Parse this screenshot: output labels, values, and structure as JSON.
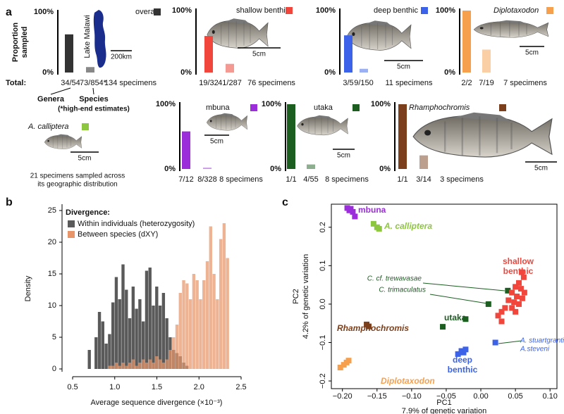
{
  "panels": [
    "a",
    "b",
    "c"
  ],
  "calliptera": {
    "title": "A. calliptera",
    "color": "#8dc63f",
    "scale": "5cm",
    "caption": [
      "21 specimens sampled across",
      "its geographic distribution"
    ]
  },
  "chart_data": [
    {
      "type": "bar",
      "title": "overall",
      "ylabel": [
        "Proportion",
        "sampled"
      ],
      "colors": [
        "#333333",
        "#888888"
      ],
      "categories": [
        "34/54",
        "73/854*"
      ],
      "values": [
        63,
        9
      ],
      "ylim": [
        0,
        100
      ],
      "yticks": [
        {
          "value": 0,
          "label": "0%"
        },
        {
          "value": 100,
          "label": "100%"
        }
      ],
      "note": "134 specimens",
      "total_label": "Total:",
      "group_labels": [
        "Genera",
        "Species"
      ],
      "footnote": "(*high-end estimates)",
      "map_label": "Lake Malawi",
      "map_scale": "200km"
    },
    {
      "type": "bar",
      "title": "shallow benthic",
      "colors": [
        "#f0463c",
        "#f59a92"
      ],
      "categories": [
        "19/32",
        "41/287"
      ],
      "values": [
        59,
        14
      ],
      "ylim": [
        0,
        100
      ],
      "yticks": [
        {
          "value": 0,
          "label": "0%"
        },
        {
          "value": 100,
          "label": "100%"
        }
      ],
      "note": "76 specimens",
      "scale": "5cm"
    },
    {
      "type": "bar",
      "title": "deep benthic",
      "colors": [
        "#3b62e8",
        "#9bb0f3"
      ],
      "categories": [
        "3/5",
        "9/150"
      ],
      "values": [
        60,
        6
      ],
      "ylim": [
        0,
        100
      ],
      "yticks": [
        {
          "value": 0,
          "label": "0%"
        },
        {
          "value": 100,
          "label": "100%"
        }
      ],
      "note": "11 specimens",
      "scale": "5cm"
    },
    {
      "type": "bar",
      "title": "Diplotaxodon",
      "title_italic": true,
      "colors": [
        "#f6a04d",
        "#fbcfa6"
      ],
      "categories": [
        "2/2",
        "7/19"
      ],
      "values": [
        100,
        37
      ],
      "ylim": [
        0,
        100
      ],
      "yticks": [
        {
          "value": 0,
          "label": "0%"
        },
        {
          "value": 100,
          "label": "100%"
        }
      ],
      "note": "7 specimens",
      "scale": "5cm"
    },
    {
      "type": "bar",
      "title": "mbuna",
      "colors": [
        "#9b2ddb",
        "#cd96ed"
      ],
      "categories": [
        "7/12",
        "8/328"
      ],
      "values": [
        58,
        2
      ],
      "ylim": [
        0,
        100
      ],
      "yticks": [
        {
          "value": 0,
          "label": "0%"
        },
        {
          "value": 100,
          "label": "100%"
        }
      ],
      "note": "8 specimens",
      "scale": "5cm"
    },
    {
      "type": "bar",
      "title": "utaka",
      "colors": [
        "#1b5e20",
        "#8daf8f"
      ],
      "categories": [
        "1/1",
        "4/55"
      ],
      "values": [
        100,
        7
      ],
      "ylim": [
        0,
        100
      ],
      "yticks": [
        {
          "value": 0,
          "label": "0%"
        },
        {
          "value": 100,
          "label": "100%"
        }
      ],
      "note": "8 specimens",
      "scale": "5cm"
    },
    {
      "type": "bar",
      "title": "Rhamphochromis",
      "title_italic": true,
      "colors": [
        "#7b3f1c",
        "#bd9f8d"
      ],
      "categories": [
        "1/1",
        "3/14"
      ],
      "values": [
        100,
        21
      ],
      "ylim": [
        0,
        100
      ],
      "yticks": [
        {
          "value": 0,
          "label": "0%"
        },
        {
          "value": 100,
          "label": "100%"
        }
      ],
      "note": "3 specimens",
      "scale": "5cm"
    },
    {
      "type": "histogram",
      "legend_title": "Divergence:",
      "xlabel": "Average sequence divergence (×10⁻³)",
      "ylabel": "Density",
      "bins": [
        0.64,
        0.68,
        0.72,
        0.76,
        0.8,
        0.84,
        0.88,
        0.92,
        0.96,
        1.0,
        1.04,
        1.08,
        1.12,
        1.16,
        1.2,
        1.24,
        1.28,
        1.32,
        1.36,
        1.4,
        1.44,
        1.48,
        1.52,
        1.56,
        1.6,
        1.64,
        1.68,
        1.72,
        1.76,
        1.8,
        1.84,
        1.88,
        1.92,
        1.96,
        2.0,
        2.04,
        2.08,
        2.12,
        2.16,
        2.2,
        2.24,
        2.28,
        2.32,
        2.36
      ],
      "series": [
        {
          "name": "Within individuals (heterozygosity)",
          "color": "#5a5a5a",
          "values": [
            0,
            3,
            0,
            5,
            9,
            7.5,
            4,
            5.5,
            10.5,
            14.5,
            11,
            16.5,
            12.5,
            8,
            13,
            9.5,
            11,
            7.5,
            15.5,
            16,
            10,
            13,
            10,
            12,
            8,
            5,
            3,
            2.5,
            2,
            1,
            0.5,
            0,
            0,
            0,
            0,
            0,
            0,
            0,
            0,
            0,
            0,
            0,
            0
          ]
        },
        {
          "name": "Between species (dXY)",
          "color": "#e8956a",
          "values": [
            0,
            0,
            0,
            0,
            0,
            0,
            0,
            0.5,
            0.5,
            1,
            0.5,
            1,
            0.5,
            1,
            1.5,
            0.5,
            1,
            1.5,
            1,
            1.5,
            1,
            2,
            1.5,
            1,
            1.5,
            3,
            5,
            7,
            12,
            14,
            13.5,
            11,
            15,
            14,
            11,
            14,
            17,
            22.5,
            15,
            11,
            20.5,
            23,
            17.5
          ]
        }
      ],
      "xlim": [
        0.5,
        2.5
      ],
      "ylim": [
        0,
        26
      ],
      "xticks": [
        0.5,
        {
          "value": 1.0,
          "label": "1.0"
        },
        1.5,
        {
          "value": 2.0,
          "label": "2.0"
        },
        2.5
      ],
      "yticks": [
        0,
        5,
        10,
        15,
        20,
        25
      ]
    },
    {
      "type": "scatter",
      "xlabel": [
        "PC1",
        "7.9% of genetic variation"
      ],
      "ylabel": [
        "PC2",
        "4.2% of genetic variation"
      ],
      "xlim": [
        -0.216,
        0.11
      ],
      "ylim": [
        -0.22,
        0.26
      ],
      "xticks": [
        {
          "value": -0.2,
          "label": "−0.20"
        },
        {
          "value": -0.15,
          "label": "−0.15"
        },
        {
          "value": -0.1,
          "label": "−0.10"
        },
        {
          "value": -0.05,
          "label": "−0.05"
        },
        {
          "value": 0,
          "label": "0.00"
        },
        0.05,
        {
          "value": 0.1,
          "label": "0.10"
        }
      ],
      "yticks": [
        {
          "value": -0.2,
          "label": "−0.2"
        },
        {
          "value": -0.1,
          "label": "−0.1"
        },
        {
          "value": 0,
          "label": "0.0"
        },
        0.1,
        0.2
      ],
      "series": [
        {
          "label_lines": [
            "mbuna"
          ],
          "color": "#9b2ddb",
          "x": [
            -0.193,
            -0.188,
            -0.185,
            -0.182,
            -0.19
          ],
          "y": [
            0.25,
            0.248,
            0.24,
            0.228,
            0.244
          ]
        },
        {
          "label_lines": [
            "A. calliptera"
          ],
          "italic": true,
          "color": "#8dc63f",
          "x": [
            -0.155,
            -0.15,
            -0.147
          ],
          "y": [
            0.209,
            0.2,
            0.196
          ]
        },
        {
          "label_lines": [
            "Rhamphochromis"
          ],
          "italic": true,
          "color": "#7b3f1c",
          "x": [
            -0.165,
            -0.162
          ],
          "y": [
            -0.053,
            -0.058
          ]
        },
        {
          "label_lines": [
            "Diplotaxodon"
          ],
          "italic": true,
          "color": "#f6a04d",
          "x": [
            -0.203,
            -0.198,
            -0.194,
            -0.191
          ],
          "y": [
            -0.165,
            -0.158,
            -0.152,
            -0.147
          ]
        },
        {
          "label_lines": [
            "deep",
            "benthic"
          ],
          "color": "#3b62e8",
          "x": [
            -0.033,
            -0.028,
            -0.025,
            -0.022,
            0.021
          ],
          "y": [
            -0.13,
            -0.122,
            -0.126,
            -0.118,
            -0.1
          ]
        },
        {
          "label_lines": [
            "utaka"
          ],
          "color": "#1b5e20",
          "x": [
            -0.055,
            -0.022,
            0.011,
            0.039
          ],
          "y": [
            -0.059,
            -0.039,
            0.0,
            0.035
          ]
        },
        {
          "label_lines": [
            "shallow",
            "benthic"
          ],
          "color": "#f0463c",
          "x": [
            0.059,
            0.062,
            0.055,
            0.05,
            0.058,
            0.063,
            0.045,
            0.052,
            0.06,
            0.048,
            0.055,
            0.04,
            0.035,
            0.03,
            0.025,
            0.03,
            0.045,
            0.05
          ],
          "y": [
            0.083,
            0.07,
            0.055,
            0.045,
            0.04,
            0.03,
            0.03,
            0.02,
            0.015,
            0.005,
            0.0,
            0.01,
            -0.01,
            -0.02,
            -0.03,
            -0.045,
            -0.01,
            -0.02
          ]
        }
      ],
      "annotations": [
        "C. cf. trewavasae",
        "C. trimaculatus",
        "A. stuartgranti",
        "A.steveni"
      ]
    }
  ]
}
